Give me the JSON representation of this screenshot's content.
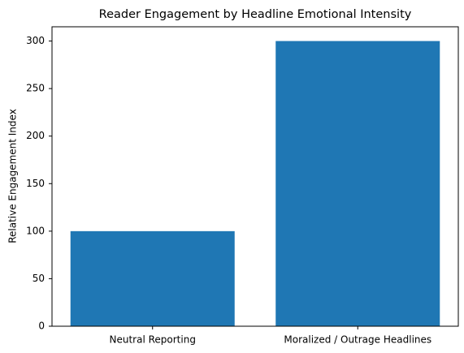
{
  "chart_data": {
    "type": "bar",
    "title": "Reader Engagement by Headline Emotional Intensity",
    "y_label": "Relative Engagement Index",
    "categories": [
      "Neutral Reporting",
      "Moralized / Outrage Headlines"
    ],
    "values": [
      100,
      300
    ],
    "color": "#1f77b4",
    "ylim": [
      0,
      315
    ],
    "yticks": [
      0,
      50,
      100,
      150,
      200,
      250,
      300
    ],
    "grid": false
  }
}
